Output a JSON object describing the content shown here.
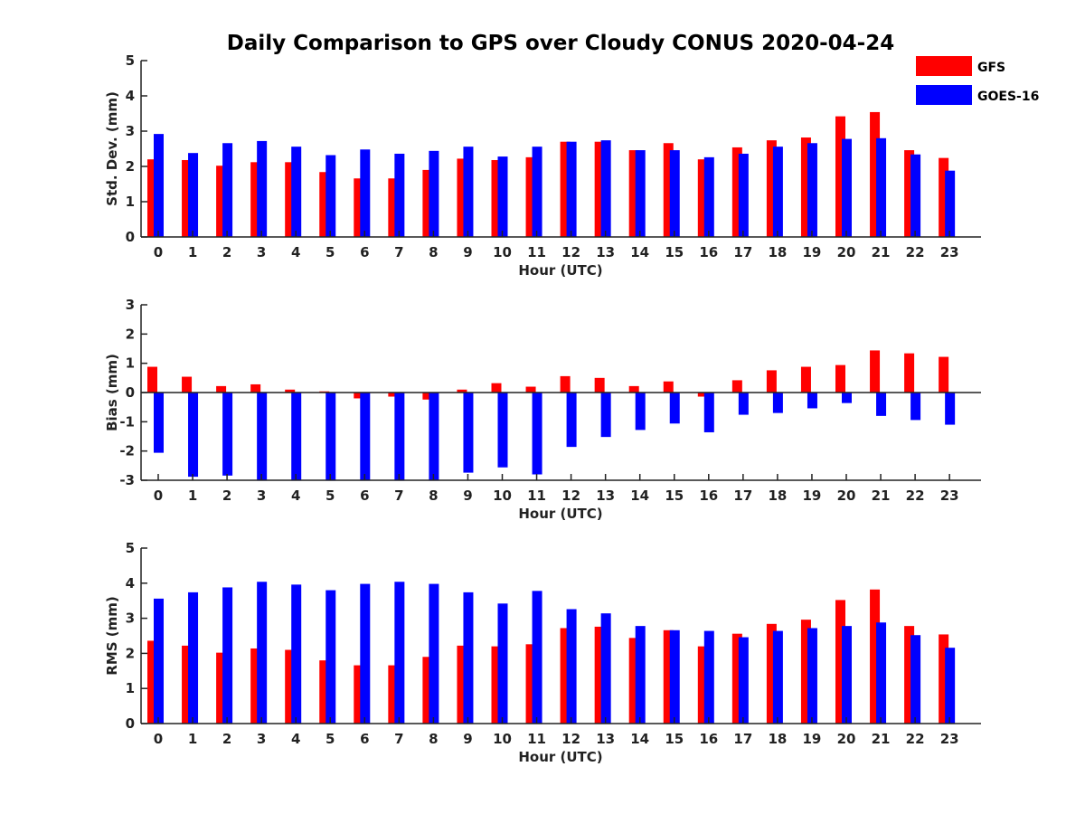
{
  "figure_title": "Daily Comparison to GPS over Cloudy CONUS 2020-04-24",
  "legend": [
    {
      "label": "GFS",
      "color": "#ff0000"
    },
    {
      "label": "GOES-16",
      "color": "#0000ff"
    }
  ],
  "chart_data": [
    {
      "type": "bar",
      "title": "Daily Comparison to GPS over Cloudy CONUS 2020-04-24",
      "xlabel": "Hour (UTC)",
      "ylabel": "Std. Dev. (mm)",
      "ylim": [
        0,
        5
      ],
      "yticks": [
        0,
        1,
        2,
        3,
        4,
        5
      ],
      "categories": [
        "0",
        "1",
        "2",
        "3",
        "4",
        "5",
        "6",
        "7",
        "8",
        "9",
        "10",
        "11",
        "12",
        "13",
        "14",
        "15",
        "16",
        "17",
        "18",
        "19",
        "20",
        "21",
        "22",
        "23"
      ],
      "grid": false,
      "legend_position": "top-right",
      "series": [
        {
          "name": "GFS",
          "color": "#ff0000",
          "values": [
            2.2,
            2.18,
            2.02,
            2.12,
            2.12,
            1.84,
            1.66,
            1.66,
            1.9,
            2.22,
            2.18,
            2.26,
            2.7,
            2.7,
            2.46,
            2.66,
            2.2,
            2.54,
            2.74,
            2.82,
            3.42,
            3.54,
            2.46,
            2.24
          ]
        },
        {
          "name": "GOES-16",
          "color": "#0000ff",
          "values": [
            2.92,
            2.38,
            2.66,
            2.72,
            2.56,
            2.32,
            2.48,
            2.36,
            2.44,
            2.56,
            2.28,
            2.56,
            2.7,
            2.74,
            2.46,
            2.46,
            2.26,
            2.36,
            2.56,
            2.66,
            2.78,
            2.8,
            2.34,
            1.88
          ]
        }
      ]
    },
    {
      "type": "bar",
      "xlabel": "Hour (UTC)",
      "ylabel": "Bias (mm)",
      "ylim": [
        -3,
        3
      ],
      "yticks": [
        -3,
        -2,
        -1,
        0,
        1,
        2,
        3
      ],
      "zero_line": true,
      "categories": [
        "0",
        "1",
        "2",
        "3",
        "4",
        "5",
        "6",
        "7",
        "8",
        "9",
        "10",
        "11",
        "12",
        "13",
        "14",
        "15",
        "16",
        "17",
        "18",
        "19",
        "20",
        "21",
        "22",
        "23"
      ],
      "grid": false,
      "series": [
        {
          "name": "GFS",
          "color": "#ff0000",
          "values": [
            0.88,
            0.54,
            0.22,
            0.28,
            0.1,
            0.04,
            -0.2,
            -0.14,
            -0.24,
            0.1,
            0.32,
            0.2,
            0.56,
            0.5,
            0.22,
            0.38,
            -0.14,
            0.42,
            0.76,
            0.88,
            0.94,
            1.44,
            1.34,
            1.22
          ]
        },
        {
          "name": "GOES-16",
          "color": "#0000ff",
          "values": [
            -2.06,
            -2.88,
            -2.84,
            -3.0,
            -3.0,
            -3.0,
            -3.0,
            -3.0,
            -3.0,
            -2.74,
            -2.56,
            -2.8,
            -1.86,
            -1.52,
            -1.28,
            -1.06,
            -1.36,
            -0.76,
            -0.7,
            -0.54,
            -0.36,
            -0.8,
            -0.94,
            -1.1
          ]
        }
      ]
    },
    {
      "type": "bar",
      "xlabel": "Hour (UTC)",
      "ylabel": "RMS (mm)",
      "ylim": [
        0,
        5
      ],
      "yticks": [
        0,
        1,
        2,
        3,
        4,
        5
      ],
      "categories": [
        "0",
        "1",
        "2",
        "3",
        "4",
        "5",
        "6",
        "7",
        "8",
        "9",
        "10",
        "11",
        "12",
        "13",
        "14",
        "15",
        "16",
        "17",
        "18",
        "19",
        "20",
        "21",
        "22",
        "23"
      ],
      "grid": false,
      "series": [
        {
          "name": "GFS",
          "color": "#ff0000",
          "values": [
            2.36,
            2.22,
            2.02,
            2.14,
            2.1,
            1.8,
            1.66,
            1.66,
            1.9,
            2.22,
            2.2,
            2.26,
            2.72,
            2.76,
            2.44,
            2.66,
            2.2,
            2.56,
            2.84,
            2.96,
            3.52,
            3.82,
            2.78,
            2.54
          ]
        },
        {
          "name": "GOES-16",
          "color": "#0000ff",
          "values": [
            3.56,
            3.74,
            3.88,
            4.04,
            3.96,
            3.8,
            3.98,
            4.04,
            3.98,
            3.74,
            3.42,
            3.78,
            3.26,
            3.14,
            2.78,
            2.66,
            2.64,
            2.46,
            2.64,
            2.72,
            2.78,
            2.88,
            2.52,
            2.16
          ]
        }
      ]
    }
  ]
}
